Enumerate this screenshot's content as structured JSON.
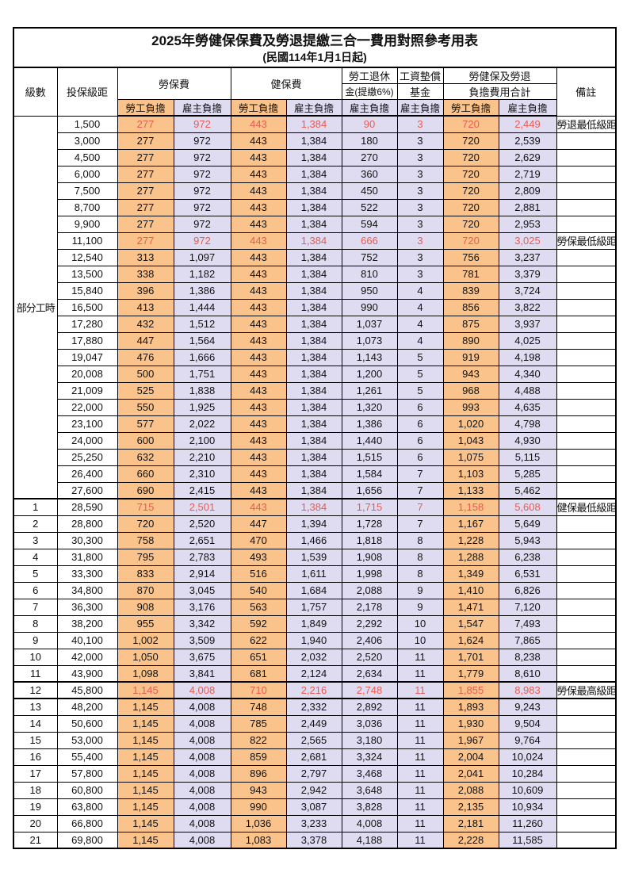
{
  "title": "2025年勞健保保費及勞退提繳三合一費用對照參考用表",
  "subtitle": "(民國114年1月1日起)",
  "colors": {
    "employee_bg": "#F9C38B",
    "employer_bg": "#DFDBF1",
    "value_red": "#E85C52",
    "remark_red": "#E05A5A",
    "border_black": "#000000"
  },
  "header": {
    "level": "級數",
    "bracket": "投保級距",
    "labor": "勞保費",
    "health": "健保費",
    "pension_line1": "勞工退休",
    "pension_line2": "金(提繳6%)",
    "fund_line1": "工資墊償",
    "fund_line2": "基金",
    "total_line1": "勞健保及勞退",
    "total_line2": "負擔費用合計",
    "remark": "備註",
    "employee": "勞工負擔",
    "employer": "雇主負擔"
  },
  "part_time_label": "部分工時",
  "rows": [
    {
      "bracket": "1,500",
      "labor_emp": "277",
      "labor_er": "972",
      "health_emp": "443",
      "health_er": "1,384",
      "pension": "90",
      "fund": "3",
      "total_emp": "720",
      "total_er": "2,449",
      "note": "勞退最低級距",
      "red": true
    },
    {
      "bracket": "3,000",
      "labor_emp": "277",
      "labor_er": "972",
      "health_emp": "443",
      "health_er": "1,384",
      "pension": "180",
      "fund": "3",
      "total_emp": "720",
      "total_er": "2,539"
    },
    {
      "bracket": "4,500",
      "labor_emp": "277",
      "labor_er": "972",
      "health_emp": "443",
      "health_er": "1,384",
      "pension": "270",
      "fund": "3",
      "total_emp": "720",
      "total_er": "2,629"
    },
    {
      "bracket": "6,000",
      "labor_emp": "277",
      "labor_er": "972",
      "health_emp": "443",
      "health_er": "1,384",
      "pension": "360",
      "fund": "3",
      "total_emp": "720",
      "total_er": "2,719"
    },
    {
      "bracket": "7,500",
      "labor_emp": "277",
      "labor_er": "972",
      "health_emp": "443",
      "health_er": "1,384",
      "pension": "450",
      "fund": "3",
      "total_emp": "720",
      "total_er": "2,809"
    },
    {
      "bracket": "8,700",
      "labor_emp": "277",
      "labor_er": "972",
      "health_emp": "443",
      "health_er": "1,384",
      "pension": "522",
      "fund": "3",
      "total_emp": "720",
      "total_er": "2,881"
    },
    {
      "bracket": "9,900",
      "labor_emp": "277",
      "labor_er": "972",
      "health_emp": "443",
      "health_er": "1,384",
      "pension": "594",
      "fund": "3",
      "total_emp": "720",
      "total_er": "2,953"
    },
    {
      "bracket": "11,100",
      "labor_emp": "277",
      "labor_er": "972",
      "health_emp": "443",
      "health_er": "1,384",
      "pension": "666",
      "fund": "3",
      "total_emp": "720",
      "total_er": "3,025",
      "note": "勞保最低級距",
      "red": true
    },
    {
      "bracket": "12,540",
      "labor_emp": "313",
      "labor_er": "1,097",
      "health_emp": "443",
      "health_er": "1,384",
      "pension": "752",
      "fund": "3",
      "total_emp": "756",
      "total_er": "3,237"
    },
    {
      "bracket": "13,500",
      "labor_emp": "338",
      "labor_er": "1,182",
      "health_emp": "443",
      "health_er": "1,384",
      "pension": "810",
      "fund": "3",
      "total_emp": "781",
      "total_er": "3,379"
    },
    {
      "bracket": "15,840",
      "labor_emp": "396",
      "labor_er": "1,386",
      "health_emp": "443",
      "health_er": "1,384",
      "pension": "950",
      "fund": "4",
      "total_emp": "839",
      "total_er": "3,724"
    },
    {
      "bracket": "16,500",
      "labor_emp": "413",
      "labor_er": "1,444",
      "health_emp": "443",
      "health_er": "1,384",
      "pension": "990",
      "fund": "4",
      "total_emp": "856",
      "total_er": "3,822"
    },
    {
      "bracket": "17,280",
      "labor_emp": "432",
      "labor_er": "1,512",
      "health_emp": "443",
      "health_er": "1,384",
      "pension": "1,037",
      "fund": "4",
      "total_emp": "875",
      "total_er": "3,937"
    },
    {
      "bracket": "17,880",
      "labor_emp": "447",
      "labor_er": "1,564",
      "health_emp": "443",
      "health_er": "1,384",
      "pension": "1,073",
      "fund": "4",
      "total_emp": "890",
      "total_er": "4,025"
    },
    {
      "bracket": "19,047",
      "labor_emp": "476",
      "labor_er": "1,666",
      "health_emp": "443",
      "health_er": "1,384",
      "pension": "1,143",
      "fund": "5",
      "total_emp": "919",
      "total_er": "4,198"
    },
    {
      "bracket": "20,008",
      "labor_emp": "500",
      "labor_er": "1,751",
      "health_emp": "443",
      "health_er": "1,384",
      "pension": "1,200",
      "fund": "5",
      "total_emp": "943",
      "total_er": "4,340"
    },
    {
      "bracket": "21,009",
      "labor_emp": "525",
      "labor_er": "1,838",
      "health_emp": "443",
      "health_er": "1,384",
      "pension": "1,261",
      "fund": "5",
      "total_emp": "968",
      "total_er": "4,488"
    },
    {
      "bracket": "22,000",
      "labor_emp": "550",
      "labor_er": "1,925",
      "health_emp": "443",
      "health_er": "1,384",
      "pension": "1,320",
      "fund": "6",
      "total_emp": "993",
      "total_er": "4,635"
    },
    {
      "bracket": "23,100",
      "labor_emp": "577",
      "labor_er": "2,022",
      "health_emp": "443",
      "health_er": "1,384",
      "pension": "1,386",
      "fund": "6",
      "total_emp": "1,020",
      "total_er": "4,798"
    },
    {
      "bracket": "24,000",
      "labor_emp": "600",
      "labor_er": "2,100",
      "health_emp": "443",
      "health_er": "1,384",
      "pension": "1,440",
      "fund": "6",
      "total_emp": "1,043",
      "total_er": "4,930"
    },
    {
      "bracket": "25,250",
      "labor_emp": "632",
      "labor_er": "2,210",
      "health_emp": "443",
      "health_er": "1,384",
      "pension": "1,515",
      "fund": "6",
      "total_emp": "1,075",
      "total_er": "5,115"
    },
    {
      "bracket": "26,400",
      "labor_emp": "660",
      "labor_er": "2,310",
      "health_emp": "443",
      "health_er": "1,384",
      "pension": "1,584",
      "fund": "7",
      "total_emp": "1,103",
      "total_er": "5,285"
    },
    {
      "bracket": "27,600",
      "labor_emp": "690",
      "labor_er": "2,415",
      "health_emp": "443",
      "health_er": "1,384",
      "pension": "1,656",
      "fund": "7",
      "total_emp": "1,133",
      "total_er": "5,462"
    },
    {
      "level": "1",
      "bracket": "28,590",
      "labor_emp": "715",
      "labor_er": "2,501",
      "health_emp": "443",
      "health_er": "1,384",
      "pension": "1,715",
      "fund": "7",
      "total_emp": "1,158",
      "total_er": "5,608",
      "note": "健保最低級距",
      "red": true,
      "bold": true,
      "thick_top": true
    },
    {
      "level": "2",
      "bracket": "28,800",
      "labor_emp": "720",
      "labor_er": "2,520",
      "health_emp": "447",
      "health_er": "1,394",
      "pension": "1,728",
      "fund": "7",
      "total_emp": "1,167",
      "total_er": "5,649"
    },
    {
      "level": "3",
      "bracket": "30,300",
      "labor_emp": "758",
      "labor_er": "2,651",
      "health_emp": "470",
      "health_er": "1,466",
      "pension": "1,818",
      "fund": "8",
      "total_emp": "1,228",
      "total_er": "5,943"
    },
    {
      "level": "4",
      "bracket": "31,800",
      "labor_emp": "795",
      "labor_er": "2,783",
      "health_emp": "493",
      "health_er": "1,539",
      "pension": "1,908",
      "fund": "8",
      "total_emp": "1,288",
      "total_er": "6,238"
    },
    {
      "level": "5",
      "bracket": "33,300",
      "labor_emp": "833",
      "labor_er": "2,914",
      "health_emp": "516",
      "health_er": "1,611",
      "pension": "1,998",
      "fund": "8",
      "total_emp": "1,349",
      "total_er": "6,531"
    },
    {
      "level": "6",
      "bracket": "34,800",
      "labor_emp": "870",
      "labor_er": "3,045",
      "health_emp": "540",
      "health_er": "1,684",
      "pension": "2,088",
      "fund": "9",
      "total_emp": "1,410",
      "total_er": "6,826"
    },
    {
      "level": "7",
      "bracket": "36,300",
      "labor_emp": "908",
      "labor_er": "3,176",
      "health_emp": "563",
      "health_er": "1,757",
      "pension": "2,178",
      "fund": "9",
      "total_emp": "1,471",
      "total_er": "7,120"
    },
    {
      "level": "8",
      "bracket": "38,200",
      "labor_emp": "955",
      "labor_er": "3,342",
      "health_emp": "592",
      "health_er": "1,849",
      "pension": "2,292",
      "fund": "10",
      "total_emp": "1,547",
      "total_er": "7,493"
    },
    {
      "level": "9",
      "bracket": "40,100",
      "labor_emp": "1,002",
      "labor_er": "3,509",
      "health_emp": "622",
      "health_er": "1,940",
      "pension": "2,406",
      "fund": "10",
      "total_emp": "1,624",
      "total_er": "7,865"
    },
    {
      "level": "10",
      "bracket": "42,000",
      "labor_emp": "1,050",
      "labor_er": "3,675",
      "health_emp": "651",
      "health_er": "2,032",
      "pension": "2,520",
      "fund": "11",
      "total_emp": "1,701",
      "total_er": "8,238"
    },
    {
      "level": "11",
      "bracket": "43,900",
      "labor_emp": "1,098",
      "labor_er": "3,841",
      "health_emp": "681",
      "health_er": "2,124",
      "pension": "2,634",
      "fund": "11",
      "total_emp": "1,779",
      "total_er": "8,610"
    },
    {
      "level": "12",
      "bracket": "45,800",
      "labor_emp": "1,145",
      "labor_er": "4,008",
      "health_emp": "710",
      "health_er": "2,216",
      "pension": "2,748",
      "fund": "11",
      "total_emp": "1,855",
      "total_er": "8,983",
      "note": "勞保最高級距",
      "red": true,
      "bold": true,
      "thick_top": true,
      "thick_bottom": true
    },
    {
      "level": "13",
      "bracket": "48,200",
      "labor_emp": "1,145",
      "labor_er": "4,008",
      "health_emp": "748",
      "health_er": "2,332",
      "pension": "2,892",
      "fund": "11",
      "total_emp": "1,893",
      "total_er": "9,243"
    },
    {
      "level": "14",
      "bracket": "50,600",
      "labor_emp": "1,145",
      "labor_er": "4,008",
      "health_emp": "785",
      "health_er": "2,449",
      "pension": "3,036",
      "fund": "11",
      "total_emp": "1,930",
      "total_er": "9,504"
    },
    {
      "level": "15",
      "bracket": "53,000",
      "labor_emp": "1,145",
      "labor_er": "4,008",
      "health_emp": "822",
      "health_er": "2,565",
      "pension": "3,180",
      "fund": "11",
      "total_emp": "1,967",
      "total_er": "9,764"
    },
    {
      "level": "16",
      "bracket": "55,400",
      "labor_emp": "1,145",
      "labor_er": "4,008",
      "health_emp": "859",
      "health_er": "2,681",
      "pension": "3,324",
      "fund": "11",
      "total_emp": "2,004",
      "total_er": "10,024"
    },
    {
      "level": "17",
      "bracket": "57,800",
      "labor_emp": "1,145",
      "labor_er": "4,008",
      "health_emp": "896",
      "health_er": "2,797",
      "pension": "3,468",
      "fund": "11",
      "total_emp": "2,041",
      "total_er": "10,284"
    },
    {
      "level": "18",
      "bracket": "60,800",
      "labor_emp": "1,145",
      "labor_er": "4,008",
      "health_emp": "943",
      "health_er": "2,942",
      "pension": "3,648",
      "fund": "11",
      "total_emp": "2,088",
      "total_er": "10,609"
    },
    {
      "level": "19",
      "bracket": "63,800",
      "labor_emp": "1,145",
      "labor_er": "4,008",
      "health_emp": "990",
      "health_er": "3,087",
      "pension": "3,828",
      "fund": "11",
      "total_emp": "2,135",
      "total_er": "10,934"
    },
    {
      "level": "20",
      "bracket": "66,800",
      "labor_emp": "1,145",
      "labor_er": "4,008",
      "health_emp": "1,036",
      "health_er": "3,233",
      "pension": "4,008",
      "fund": "11",
      "total_emp": "2,181",
      "total_er": "11,260"
    },
    {
      "level": "21",
      "bracket": "69,800",
      "labor_emp": "1,145",
      "labor_er": "4,008",
      "health_emp": "1,083",
      "health_er": "3,378",
      "pension": "4,188",
      "fund": "11",
      "total_emp": "2,228",
      "total_er": "11,585"
    }
  ]
}
